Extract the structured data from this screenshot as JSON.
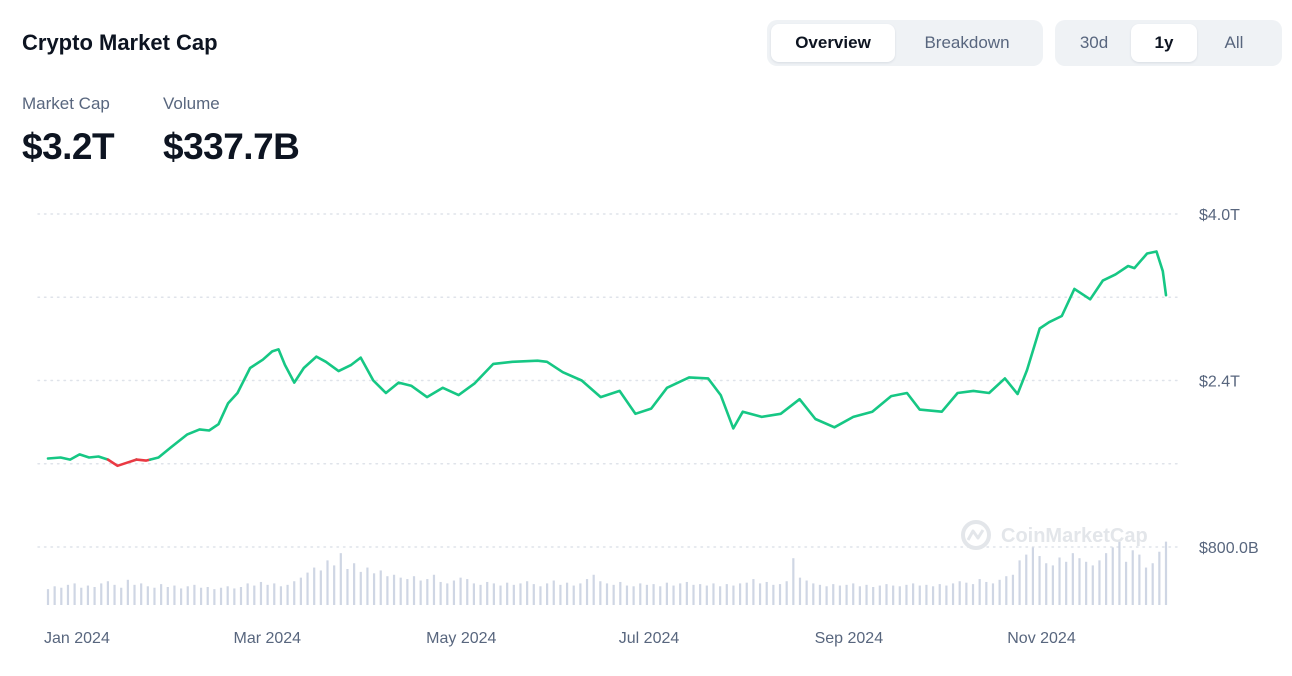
{
  "header": {
    "title": "Crypto Market Cap",
    "view_tabs": [
      {
        "label": "Overview",
        "active": true
      },
      {
        "label": "Breakdown",
        "active": false
      }
    ],
    "range_tabs": [
      {
        "label": "30d",
        "active": false
      },
      {
        "label": "1y",
        "active": true
      },
      {
        "label": "All",
        "active": false
      }
    ]
  },
  "stats": {
    "market_cap_label": "Market Cap",
    "market_cap_value": "$3.2T",
    "volume_label": "Volume",
    "volume_value": "$337.7B"
  },
  "watermark": "CoinMarketCap",
  "colors": {
    "up": "#16c784",
    "down": "#ea3943",
    "volume": "#cfd6e4",
    "grid": "#dfe3ea",
    "text_muted": "#58667e"
  },
  "chart_data": {
    "type": "line",
    "x_start": "2024-01-01",
    "x_end": "2024-12-20",
    "ylim": [
      0.4,
      4.0
    ],
    "y_unit": "T",
    "y_gridlines": [
      4.0,
      3.2,
      2.4,
      1.6,
      0.8
    ],
    "y_tick_labels": [
      {
        "value": 4.0,
        "label": "$4.0T"
      },
      {
        "value": 2.4,
        "label": "$2.4T"
      },
      {
        "value": 0.8,
        "label": "$800.0B"
      }
    ],
    "x_tick_labels": [
      {
        "date": "2024-01-01",
        "label": "Jan 2024"
      },
      {
        "date": "2024-03-01",
        "label": "Mar 2024"
      },
      {
        "date": "2024-05-01",
        "label": "May 2024"
      },
      {
        "date": "2024-07-01",
        "label": "Jul 2024"
      },
      {
        "date": "2024-09-01",
        "label": "Sep 2024"
      },
      {
        "date": "2024-11-01",
        "label": "Nov 2024"
      }
    ],
    "baseline_value": 1.64,
    "series": [
      {
        "values": [
          [
            "2024-01-01",
            1.65
          ],
          [
            "2024-01-05",
            1.66
          ],
          [
            "2024-01-08",
            1.64
          ],
          [
            "2024-01-11",
            1.69
          ],
          [
            "2024-01-14",
            1.66
          ],
          [
            "2024-01-17",
            1.67
          ],
          [
            "2024-01-20",
            1.64
          ],
          [
            "2024-01-23",
            1.58
          ],
          [
            "2024-01-26",
            1.61
          ],
          [
            "2024-01-29",
            1.64
          ],
          [
            "2024-02-01",
            1.63
          ],
          [
            "2024-02-05",
            1.66
          ],
          [
            "2024-02-09",
            1.76
          ],
          [
            "2024-02-14",
            1.88
          ],
          [
            "2024-02-18",
            1.93
          ],
          [
            "2024-02-21",
            1.92
          ],
          [
            "2024-02-24",
            1.98
          ],
          [
            "2024-02-27",
            2.18
          ],
          [
            "2024-03-01",
            2.28
          ],
          [
            "2024-03-05",
            2.52
          ],
          [
            "2024-03-09",
            2.6
          ],
          [
            "2024-03-12",
            2.68
          ],
          [
            "2024-03-14",
            2.7
          ],
          [
            "2024-03-16",
            2.55
          ],
          [
            "2024-03-19",
            2.38
          ],
          [
            "2024-03-22",
            2.52
          ],
          [
            "2024-03-26",
            2.63
          ],
          [
            "2024-03-29",
            2.58
          ],
          [
            "2024-04-02",
            2.49
          ],
          [
            "2024-04-06",
            2.55
          ],
          [
            "2024-04-09",
            2.62
          ],
          [
            "2024-04-13",
            2.4
          ],
          [
            "2024-04-17",
            2.28
          ],
          [
            "2024-04-21",
            2.38
          ],
          [
            "2024-04-25",
            2.35
          ],
          [
            "2024-04-30",
            2.24
          ],
          [
            "2024-05-05",
            2.33
          ],
          [
            "2024-05-10",
            2.26
          ],
          [
            "2024-05-15",
            2.37
          ],
          [
            "2024-05-21",
            2.56
          ],
          [
            "2024-05-27",
            2.58
          ],
          [
            "2024-06-04",
            2.59
          ],
          [
            "2024-06-07",
            2.58
          ],
          [
            "2024-06-12",
            2.48
          ],
          [
            "2024-06-18",
            2.4
          ],
          [
            "2024-06-24",
            2.24
          ],
          [
            "2024-06-30",
            2.3
          ],
          [
            "2024-07-05",
            2.08
          ],
          [
            "2024-07-10",
            2.13
          ],
          [
            "2024-07-15",
            2.33
          ],
          [
            "2024-07-22",
            2.43
          ],
          [
            "2024-07-28",
            2.42
          ],
          [
            "2024-08-01",
            2.26
          ],
          [
            "2024-08-05",
            1.94
          ],
          [
            "2024-08-08",
            2.1
          ],
          [
            "2024-08-14",
            2.05
          ],
          [
            "2024-08-20",
            2.08
          ],
          [
            "2024-08-26",
            2.22
          ],
          [
            "2024-08-31",
            2.03
          ],
          [
            "2024-09-06",
            1.95
          ],
          [
            "2024-09-12",
            2.05
          ],
          [
            "2024-09-18",
            2.1
          ],
          [
            "2024-09-24",
            2.25
          ],
          [
            "2024-09-29",
            2.28
          ],
          [
            "2024-10-03",
            2.12
          ],
          [
            "2024-10-10",
            2.1
          ],
          [
            "2024-10-15",
            2.28
          ],
          [
            "2024-10-20",
            2.3
          ],
          [
            "2024-10-25",
            2.28
          ],
          [
            "2024-10-30",
            2.42
          ],
          [
            "2024-11-03",
            2.27
          ],
          [
            "2024-11-06",
            2.5
          ],
          [
            "2024-11-10",
            2.9
          ],
          [
            "2024-11-13",
            2.96
          ],
          [
            "2024-11-17",
            3.02
          ],
          [
            "2024-11-21",
            3.28
          ],
          [
            "2024-11-26",
            3.18
          ],
          [
            "2024-11-30",
            3.36
          ],
          [
            "2024-12-04",
            3.42
          ],
          [
            "2024-12-08",
            3.5
          ],
          [
            "2024-12-10",
            3.48
          ],
          [
            "2024-12-14",
            3.62
          ],
          [
            "2024-12-17",
            3.64
          ],
          [
            "2024-12-19",
            3.45
          ],
          [
            "2024-12-20",
            3.22
          ]
        ]
      }
    ],
    "volume_relative": [
      0.22,
      0.26,
      0.24,
      0.28,
      0.3,
      0.24,
      0.27,
      0.25,
      0.3,
      0.33,
      0.28,
      0.24,
      0.35,
      0.28,
      0.3,
      0.26,
      0.24,
      0.29,
      0.25,
      0.27,
      0.23,
      0.26,
      0.28,
      0.24,
      0.25,
      0.22,
      0.24,
      0.26,
      0.23,
      0.25,
      0.3,
      0.27,
      0.32,
      0.28,
      0.3,
      0.26,
      0.28,
      0.33,
      0.38,
      0.45,
      0.52,
      0.48,
      0.62,
      0.55,
      0.72,
      0.5,
      0.58,
      0.46,
      0.52,
      0.44,
      0.48,
      0.4,
      0.42,
      0.38,
      0.36,
      0.4,
      0.34,
      0.36,
      0.42,
      0.32,
      0.3,
      0.34,
      0.38,
      0.36,
      0.3,
      0.28,
      0.32,
      0.3,
      0.27,
      0.31,
      0.28,
      0.3,
      0.33,
      0.29,
      0.26,
      0.3,
      0.34,
      0.28,
      0.31,
      0.27,
      0.3,
      0.36,
      0.42,
      0.33,
      0.3,
      0.28,
      0.32,
      0.27,
      0.26,
      0.3,
      0.28,
      0.29,
      0.26,
      0.31,
      0.27,
      0.3,
      0.32,
      0.28,
      0.29,
      0.27,
      0.3,
      0.26,
      0.29,
      0.27,
      0.3,
      0.31,
      0.36,
      0.3,
      0.32,
      0.28,
      0.29,
      0.33,
      0.65,
      0.38,
      0.34,
      0.3,
      0.28,
      0.26,
      0.29,
      0.27,
      0.28,
      0.3,
      0.26,
      0.28,
      0.25,
      0.27,
      0.29,
      0.27,
      0.26,
      0.28,
      0.3,
      0.27,
      0.28,
      0.26,
      0.29,
      0.27,
      0.3,
      0.33,
      0.31,
      0.29,
      0.36,
      0.32,
      0.3,
      0.35,
      0.4,
      0.42,
      0.62,
      0.7,
      0.8,
      0.68,
      0.58,
      0.55,
      0.66,
      0.6,
      0.72,
      0.65,
      0.6,
      0.55,
      0.62,
      0.72,
      0.8,
      0.88,
      0.6,
      0.76,
      0.7,
      0.52,
      0.58,
      0.74,
      0.88
    ]
  }
}
